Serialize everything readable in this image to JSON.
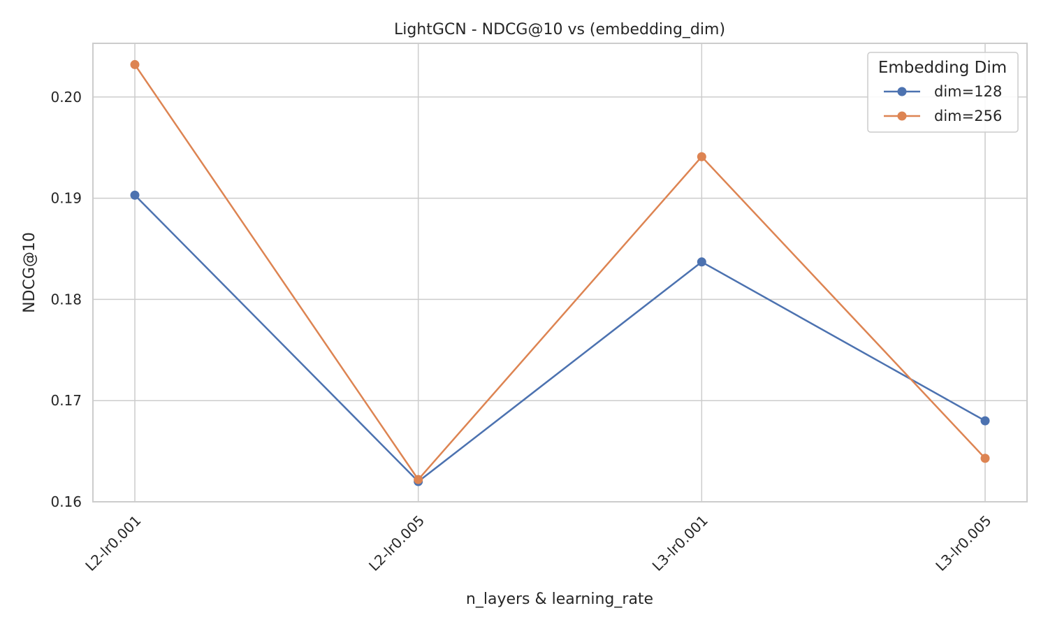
{
  "chart_data": {
    "type": "line",
    "title": "LightGCN - NDCG@10 vs (embedding_dim)",
    "xlabel": "n_layers & learning_rate",
    "ylabel": "NDCG@10",
    "categories": [
      "L2-lr0.001",
      "L2-lr0.005",
      "L3-lr0.001",
      "L3-lr0.005"
    ],
    "ylim": [
      0.16,
      0.2053
    ],
    "yticks": [
      "0.16",
      "0.17",
      "0.18",
      "0.19",
      "0.20"
    ],
    "grid": true,
    "legend": {
      "title": "Embedding Dim",
      "placement": "top-right"
    },
    "series": [
      {
        "name": "dim=128",
        "color": "#4c72b0",
        "values": [
          0.1903,
          0.162,
          0.1837,
          0.168
        ]
      },
      {
        "name": "dim=256",
        "color": "#dd8452",
        "values": [
          0.2032,
          0.1622,
          0.1941,
          0.1643
        ]
      }
    ]
  }
}
